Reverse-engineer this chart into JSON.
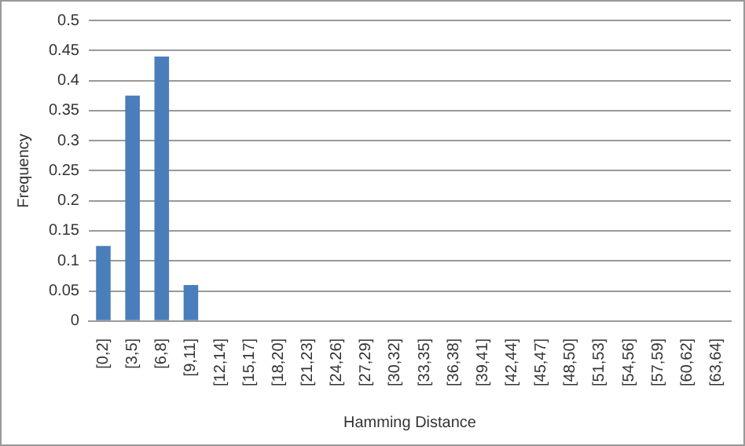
{
  "chart_data": {
    "type": "bar",
    "xlabel": "Hamming Distance",
    "ylabel": "Frequency",
    "categories": [
      "[0,2]",
      "[3,5]",
      "[6,8]",
      "[9,11]",
      "[12,14]",
      "[15,17]",
      "[18,20]",
      "[21,23]",
      "[24,26]",
      "[27,29]",
      "[30,32]",
      "[33,35]",
      "[36,38]",
      "[39,41]",
      "[42,44]",
      "[45,47]",
      "[48,50]",
      "[51,53]",
      "[54,56]",
      "[57,59]",
      "[60,62]",
      "[63,64]"
    ],
    "values": [
      0.125,
      0.375,
      0.44,
      0.06,
      0,
      0,
      0,
      0,
      0,
      0,
      0,
      0,
      0,
      0,
      0,
      0,
      0,
      0,
      0,
      0,
      0,
      0
    ],
    "color": "#4a7ebb",
    "ylim": [
      0,
      0.5
    ],
    "yticks": [
      0,
      0.05,
      0.1,
      0.15,
      0.2,
      0.25,
      0.3,
      0.35,
      0.4,
      0.45,
      0.5
    ],
    "grid": "y",
    "legend": false
  }
}
